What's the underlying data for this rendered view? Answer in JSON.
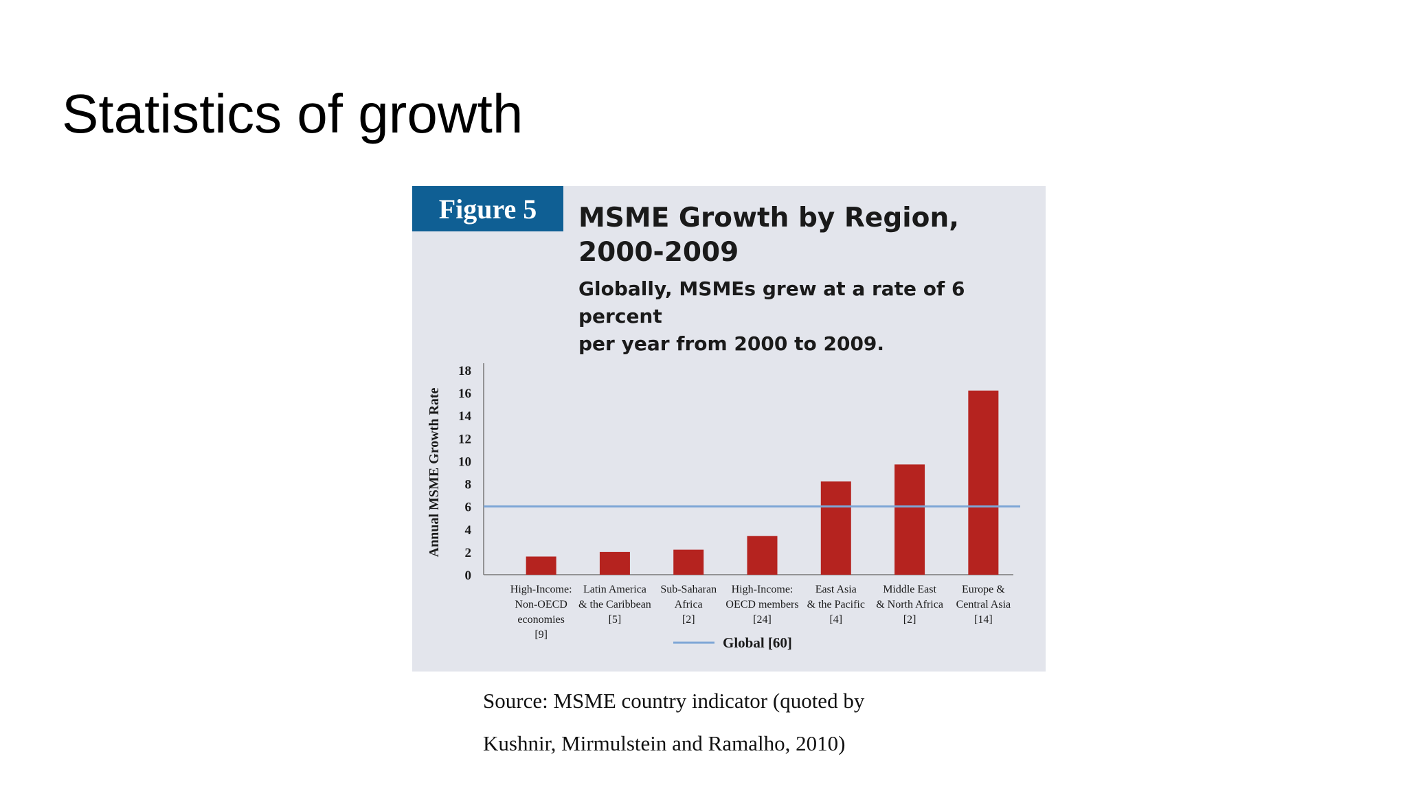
{
  "slide": {
    "title": "Statistics of growth",
    "source_line1": "Source:    MSME    country    indicator    (quoted    by",
    "source_line2": "Kushnir, Mirmulstein  and Ramalho, 2010)"
  },
  "colors": {
    "bar": "#b5231f",
    "global_line": "#7ea6d6",
    "tag_bg": "#0f5f94",
    "panel_bg": "#e3e5ec"
  },
  "chart_data": {
    "type": "bar",
    "figure_label": "Figure 5",
    "title_line1": "MSME Growth by Region,",
    "title_line2": "2000-2009",
    "subtitle_line1": "Globally, MSMEs grew at a rate of 6 percent",
    "subtitle_line2": "per year from 2000 to 2009.",
    "ylabel": "Annual MSME Growth Rate",
    "xlabel": "",
    "ylim": [
      0,
      18
    ],
    "yticks": [
      0,
      2,
      4,
      6,
      8,
      10,
      12,
      14,
      16,
      18
    ],
    "categories": [
      {
        "lines": [
          "High-Income:",
          "Non-OECD",
          "economies",
          "[9]"
        ]
      },
      {
        "lines": [
          "Latin America",
          "& the Caribbean",
          "[5]"
        ]
      },
      {
        "lines": [
          "Sub-Saharan",
          "Africa",
          "[2]"
        ]
      },
      {
        "lines": [
          "High-Income:",
          "OECD members",
          "[24]"
        ]
      },
      {
        "lines": [
          "East Asia",
          "& the Pacific",
          "[4]"
        ]
      },
      {
        "lines": [
          "Middle East",
          "& North Africa",
          "[2]"
        ]
      },
      {
        "lines": [
          "Europe &",
          "Central Asia",
          "[14]"
        ]
      }
    ],
    "values": [
      1.6,
      2.0,
      2.2,
      3.4,
      8.2,
      9.7,
      16.2
    ],
    "reference_line": {
      "name": "Global [60]",
      "value": 6
    },
    "legend": "bottom"
  }
}
